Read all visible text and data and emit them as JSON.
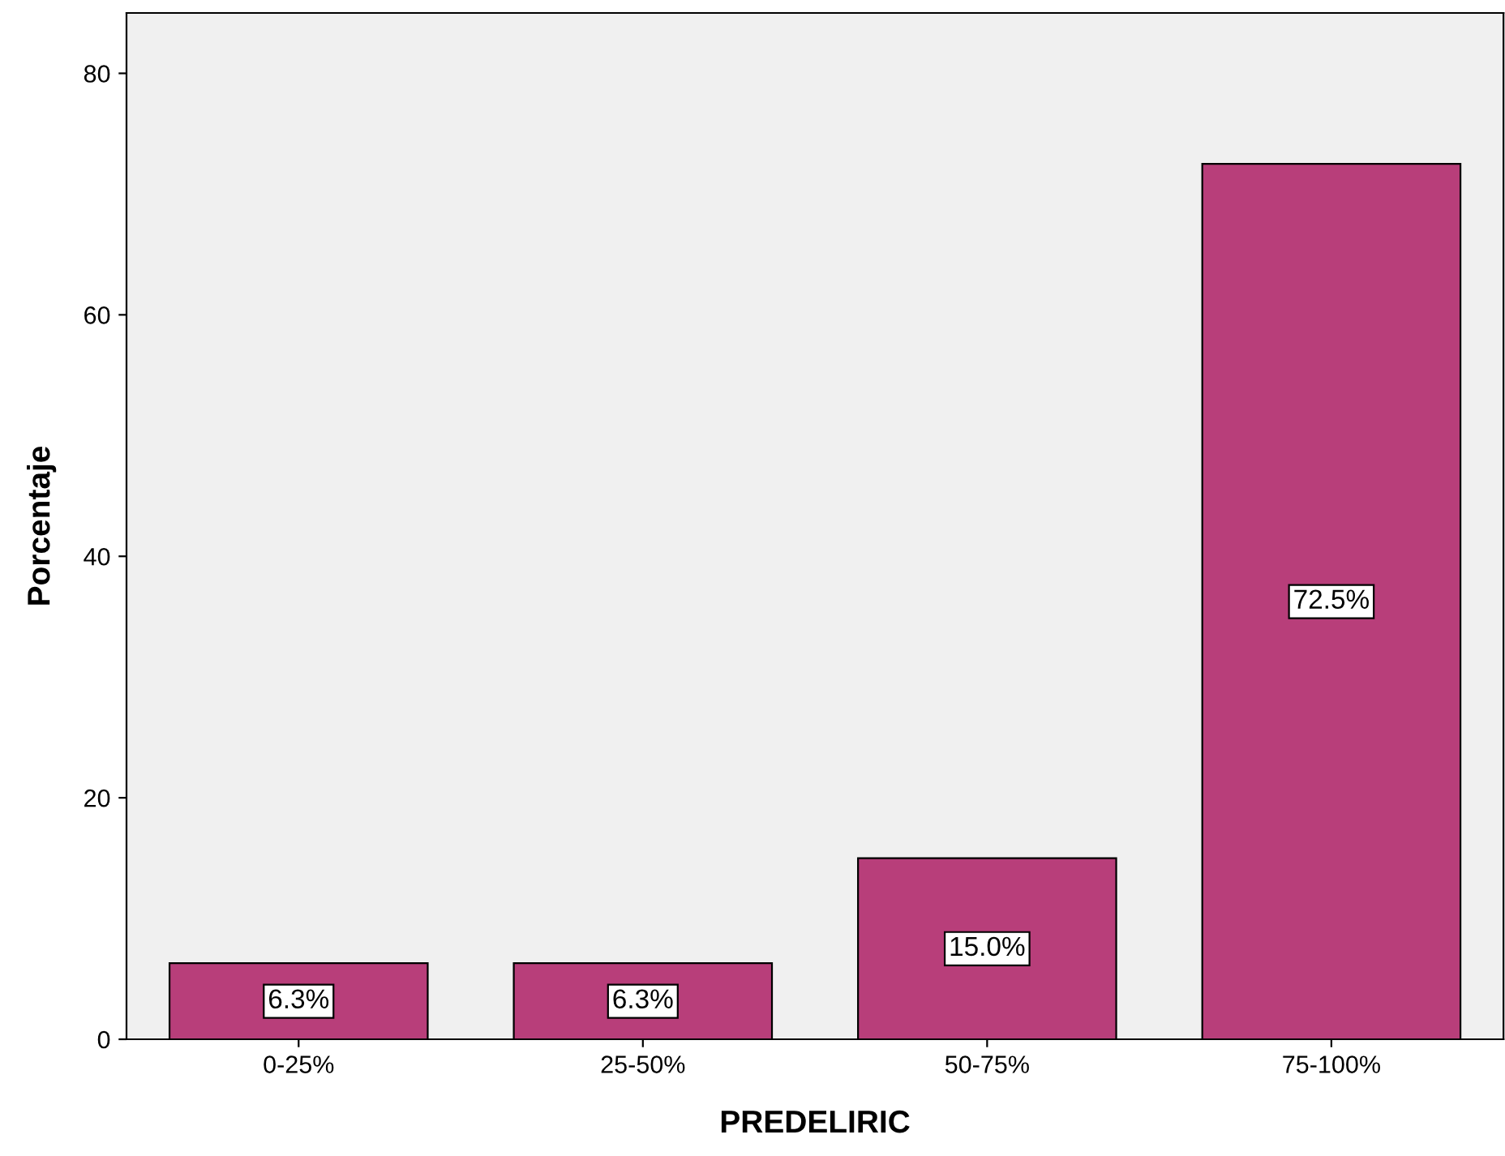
{
  "chart_data": {
    "type": "bar",
    "xlabel": "PREDELIRIC",
    "ylabel": "Porcentaje",
    "categories": [
      "0-25%",
      "25-50%",
      "50-75%",
      "75-100%"
    ],
    "values": [
      6.3,
      6.3,
      15.0,
      72.5
    ],
    "value_labels": [
      "6.3%",
      "6.3%",
      "15.0%",
      "72.5%"
    ],
    "color": "#b83e7a",
    "ylim": [
      0,
      85
    ],
    "yticks": [
      0,
      20,
      40,
      60,
      80
    ],
    "grid": false,
    "legend": false
  }
}
